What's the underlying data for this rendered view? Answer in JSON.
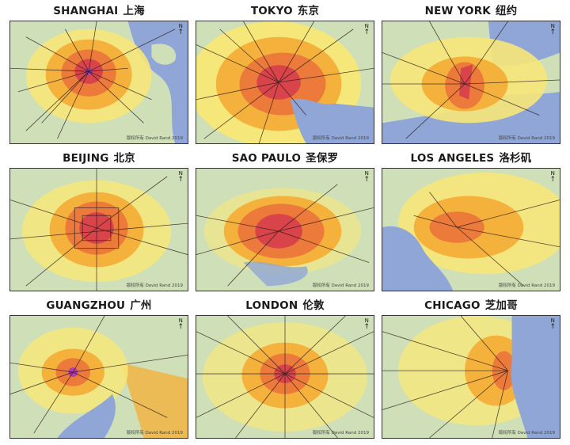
{
  "panels": [
    {
      "id": "shanghai",
      "name": "SHANGHAI",
      "name_zh": "上海"
    },
    {
      "id": "tokyo",
      "name": "TOKYO",
      "name_zh": "东京"
    },
    {
      "id": "new-york",
      "name": "NEW YORK",
      "name_zh": "纽约"
    },
    {
      "id": "beijing",
      "name": "BEIJING",
      "name_zh": "北京"
    },
    {
      "id": "sao-paulo",
      "name": "SAO PAULO",
      "name_zh": "圣保罗"
    },
    {
      "id": "los-angeles",
      "name": "LOS ANGELES",
      "name_zh": "洛杉矶"
    },
    {
      "id": "guangzhou",
      "name": "GUANGZHOU",
      "name_zh": "广州"
    },
    {
      "id": "london",
      "name": "LONDON",
      "name_zh": "伦敦"
    },
    {
      "id": "chicago",
      "name": "CHICAGO",
      "name_zh": "芝加哥"
    }
  ],
  "north_label": "N",
  "credit": "版权所有 David Rand 2019",
  "colors": {
    "land": "#cfe0b8",
    "water": "#8fa6d6",
    "density_low": "#f6e77a",
    "density_mid": "#f4b23c",
    "density_high": "#ec7a3a",
    "density_core": "#d9434a",
    "rail": "#2a1a1a"
  }
}
